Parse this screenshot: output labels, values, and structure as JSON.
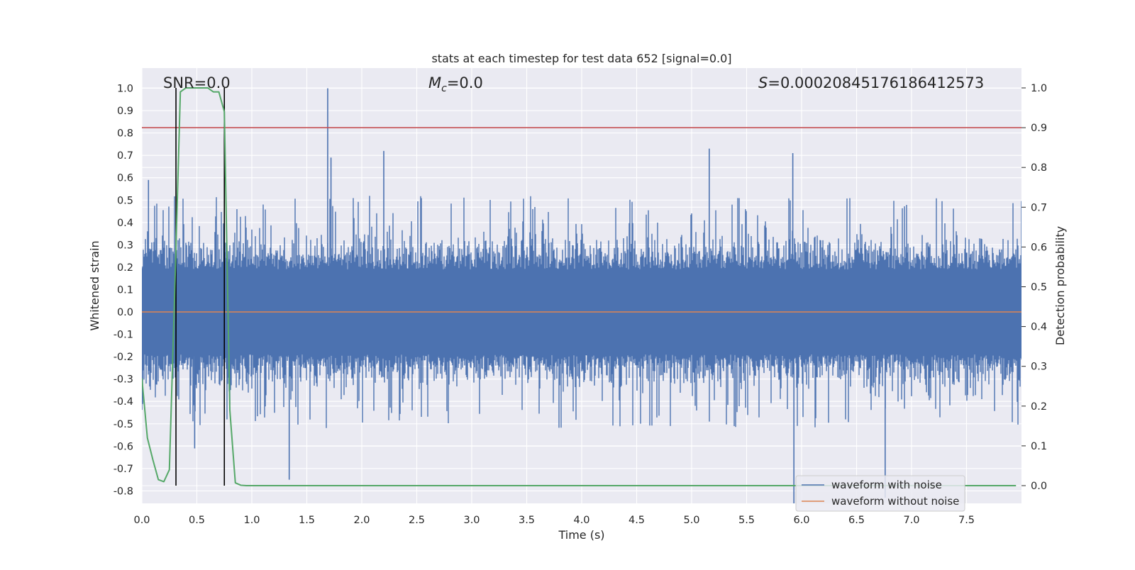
{
  "chart_data": {
    "type": "line",
    "title": "stats at each timestep for test data 652 [signal=0.0]",
    "xlabel": "Time (s)",
    "ylabel": "Whitened strain",
    "ylabel_right": "Detection probability",
    "xlim": [
      0.0,
      8.0
    ],
    "ylim": [
      -0.87,
      1.08
    ],
    "ylim_right": [
      -0.05,
      1.04
    ],
    "x_ticks": [
      "0.0",
      "0.5",
      "1.0",
      "1.5",
      "2.0",
      "2.5",
      "3.0",
      "3.5",
      "4.0",
      "4.5",
      "5.0",
      "5.5",
      "6.0",
      "6.5",
      "7.0",
      "7.5"
    ],
    "y_ticks": [
      "1.0",
      "0.9",
      "0.8",
      "0.7",
      "0.6",
      "0.5",
      "0.4",
      "0.3",
      "0.2",
      "0.1",
      "0.0",
      "-0.1",
      "-0.2",
      "-0.3",
      "-0.4",
      "-0.5",
      "-0.6",
      "-0.7",
      "-0.8"
    ],
    "y_ticks_right": [
      "1.0",
      "0.9",
      "0.8",
      "0.7",
      "0.6",
      "0.5",
      "0.4",
      "0.3",
      "0.2",
      "0.1",
      "0.0"
    ],
    "grid": true,
    "legend_position": "lower-right",
    "annotations": {
      "snr": "SNR=0.0",
      "mc_symbol": "M",
      "mc_sub": "c",
      "mc_value": "=0.0",
      "s_symbol": "S",
      "s_value": "=0.00020845176186412573"
    },
    "series": [
      {
        "name": "waveform with noise",
        "color": "#4c72b0",
        "axis": "left",
        "note": "dense noise, band roughly ±0.3, spikes up to 1.0 near t=1.7",
        "peaks": [
          {
            "x": 1.69,
            "y": 1.0
          },
          {
            "x": 1.72,
            "y": 0.69
          },
          {
            "x": 2.2,
            "y": 0.72
          },
          {
            "x": 5.16,
            "y": 0.73
          },
          {
            "x": 5.92,
            "y": 0.71
          },
          {
            "x": 5.93,
            "y": -0.87
          },
          {
            "x": 6.76,
            "y": -0.83
          },
          {
            "x": 1.34,
            "y": -0.75
          },
          {
            "x": 0.06,
            "y": 0.59
          },
          {
            "x": 0.48,
            "y": -0.61
          }
        ]
      },
      {
        "name": "waveform without noise",
        "color": "#dd8452",
        "axis": "left",
        "x": [
          0.0,
          8.0
        ],
        "y": [
          0.0,
          0.0
        ]
      },
      {
        "name": "",
        "color": "#55a868",
        "axis": "right",
        "x": [
          0.0,
          0.05,
          0.1,
          0.15,
          0.2,
          0.25,
          0.3,
          0.35,
          0.4,
          0.45,
          0.5,
          0.55,
          0.6,
          0.65,
          0.7,
          0.75,
          0.8,
          0.85,
          0.9,
          0.95,
          1.0,
          7.95
        ],
        "y": [
          0.27,
          0.12,
          0.065,
          0.015,
          0.01,
          0.04,
          0.5,
          0.99,
          1.0,
          1.0,
          1.0,
          1.0,
          1.0,
          0.99,
          0.99,
          0.94,
          0.19,
          0.007,
          0.001,
          0.0,
          0.0,
          0.0
        ]
      }
    ],
    "threshold": {
      "axis": "right",
      "value": 0.9,
      "color": "#c44e52"
    },
    "vertical_markers": {
      "x": [
        0.31,
        0.75
      ],
      "color": "#000000"
    }
  }
}
